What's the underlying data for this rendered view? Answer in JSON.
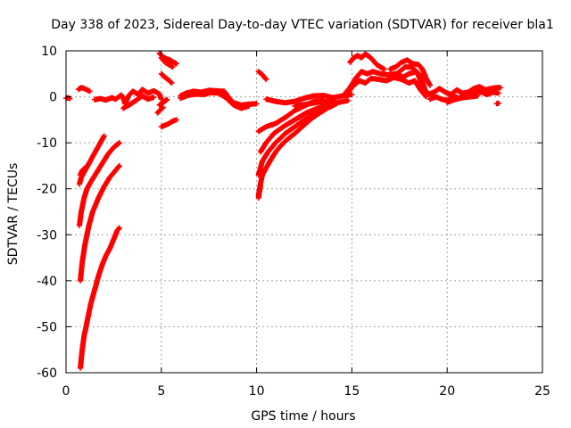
{
  "chart_data": {
    "type": "scatter",
    "title": "Day 338 of 2023, Sidereal Day-to-day VTEC variation (SDTVAR) for receiver bla1",
    "xlabel": "GPS time / hours",
    "ylabel": "SDTVAR / TECUs",
    "xlim": [
      0,
      25
    ],
    "ylim": [
      -60,
      10
    ],
    "xticks": [
      0,
      5,
      10,
      15,
      20,
      25
    ],
    "yticks": [
      -60,
      -50,
      -40,
      -30,
      -20,
      -10,
      0,
      10
    ],
    "grid": true,
    "marker": "+",
    "series_color": "#ff0000",
    "segments": [
      {
        "name": "start",
        "points": [
          [
            0.0,
            -0.3
          ],
          [
            0.1,
            -0.2
          ],
          [
            0.2,
            -0.4
          ]
        ]
      },
      {
        "name": "arc-a",
        "points": [
          [
            0.75,
            -17
          ],
          [
            0.85,
            -16
          ],
          [
            1.0,
            -15.5
          ],
          [
            1.1,
            -15
          ]
        ]
      },
      {
        "name": "arc-b",
        "points": [
          [
            0.7,
            -19
          ],
          [
            0.8,
            -17.5
          ],
          [
            1.0,
            -16
          ],
          [
            1.2,
            -14.5
          ],
          [
            1.4,
            -13
          ],
          [
            1.6,
            -11.5
          ],
          [
            1.8,
            -10
          ],
          [
            2.0,
            -8.5
          ]
        ]
      },
      {
        "name": "arc-c",
        "points": [
          [
            0.7,
            -28
          ],
          [
            0.8,
            -25
          ],
          [
            0.95,
            -22
          ],
          [
            1.1,
            -20
          ],
          [
            1.3,
            -18.5
          ],
          [
            1.6,
            -16.5
          ],
          [
            1.9,
            -14.5
          ],
          [
            2.2,
            -12.5
          ],
          [
            2.5,
            -11
          ],
          [
            2.8,
            -10
          ]
        ]
      },
      {
        "name": "arc-d",
        "points": [
          [
            0.75,
            -40
          ],
          [
            0.85,
            -36
          ],
          [
            1.0,
            -32
          ],
          [
            1.2,
            -28
          ],
          [
            1.4,
            -25
          ],
          [
            1.7,
            -22
          ],
          [
            2.0,
            -19.5
          ],
          [
            2.3,
            -17.5
          ],
          [
            2.6,
            -16
          ],
          [
            2.8,
            -15
          ]
        ]
      },
      {
        "name": "arc-e",
        "points": [
          [
            0.75,
            -59
          ],
          [
            0.85,
            -55
          ],
          [
            0.95,
            -52
          ],
          [
            1.1,
            -49
          ],
          [
            1.3,
            -45
          ],
          [
            1.5,
            -42
          ],
          [
            1.7,
            -39
          ],
          [
            1.9,
            -36.5
          ],
          [
            2.1,
            -34.5
          ],
          [
            2.3,
            -33
          ],
          [
            2.5,
            -31
          ],
          [
            2.7,
            -29
          ],
          [
            2.8,
            -28.5
          ]
        ]
      },
      {
        "name": "early-pos",
        "points": [
          [
            0.65,
            1.6
          ],
          [
            0.8,
            2.0
          ],
          [
            0.95,
            1.8
          ],
          [
            1.1,
            1.5
          ],
          [
            1.25,
            1.2
          ]
        ]
      },
      {
        "name": "wave-1",
        "points": [
          [
            1.5,
            -0.6
          ],
          [
            1.8,
            -0.4
          ],
          [
            2.1,
            -0.7
          ],
          [
            2.4,
            -0.2
          ],
          [
            2.6,
            -0.5
          ],
          [
            2.9,
            0.4
          ],
          [
            3.0,
            -0.3
          ],
          [
            3.1,
            -1.5
          ],
          [
            3.3,
            0.3
          ],
          [
            3.5,
            1.2
          ],
          [
            3.8,
            0.5
          ],
          [
            4.0,
            1.6
          ],
          [
            4.3,
            0.8
          ],
          [
            4.6,
            1.3
          ],
          [
            4.9,
            0.6
          ],
          [
            5.0,
            -0.5
          ]
        ]
      },
      {
        "name": "wave-1b",
        "points": [
          [
            3.0,
            -2.5
          ],
          [
            3.3,
            -1.8
          ],
          [
            3.6,
            -1.0
          ],
          [
            4.0,
            0.2
          ],
          [
            4.3,
            -0.5
          ],
          [
            4.6,
            -0.1
          ]
        ]
      },
      {
        "name": "wave-1c",
        "points": [
          [
            4.8,
            -3.5
          ],
          [
            4.95,
            -2.8
          ],
          [
            5.1,
            -2.3
          ]
        ]
      },
      {
        "name": "pass-5-top",
        "points": [
          [
            4.9,
            9.5
          ],
          [
            5.05,
            8.8
          ],
          [
            5.25,
            8.3
          ],
          [
            5.45,
            8.0
          ],
          [
            5.6,
            7.6
          ],
          [
            5.8,
            7.2
          ]
        ]
      },
      {
        "name": "pass-5-top-b",
        "points": [
          [
            5.0,
            8.5
          ],
          [
            5.2,
            7.5
          ],
          [
            5.4,
            7.0
          ],
          [
            5.6,
            6.5
          ]
        ]
      },
      {
        "name": "pass-5-mid",
        "points": [
          [
            5.0,
            5.0
          ],
          [
            5.2,
            4.2
          ],
          [
            5.4,
            3.6
          ],
          [
            5.55,
            3.0
          ]
        ]
      },
      {
        "name": "pass-5-low",
        "points": [
          [
            5.0,
            -6.5
          ],
          [
            5.2,
            -6.2
          ],
          [
            5.4,
            -5.8
          ],
          [
            5.6,
            -5.3
          ],
          [
            5.8,
            -5.0
          ]
        ]
      },
      {
        "name": "pass-5-low-b",
        "points": [
          [
            4.9,
            -1.8
          ],
          [
            5.1,
            -1.2
          ],
          [
            5.3,
            -0.6
          ]
        ]
      },
      {
        "name": "wave-2",
        "points": [
          [
            6.0,
            0.2
          ],
          [
            6.3,
            0.8
          ],
          [
            6.7,
            1.2
          ],
          [
            7.1,
            1.0
          ],
          [
            7.5,
            1.4
          ],
          [
            7.9,
            1.3
          ],
          [
            8.3,
            1.2
          ],
          [
            8.6,
            -0.5
          ],
          [
            8.8,
            -1.3
          ],
          [
            9.2,
            -1.8
          ],
          [
            9.6,
            -1.6
          ],
          [
            10.0,
            -1.5
          ]
        ]
      },
      {
        "name": "wave-2b",
        "points": [
          [
            6.0,
            -0.3
          ],
          [
            6.4,
            0.3
          ],
          [
            6.8,
            0.6
          ],
          [
            7.2,
            0.5
          ],
          [
            7.6,
            0.9
          ],
          [
            8.0,
            0.8
          ],
          [
            8.4,
            -0.2
          ],
          [
            8.8,
            -1.8
          ],
          [
            9.2,
            -2.5
          ],
          [
            9.6,
            -2.0
          ]
        ]
      },
      {
        "name": "pass-10-pos",
        "points": [
          [
            10.1,
            5.5
          ],
          [
            10.3,
            4.8
          ],
          [
            10.5,
            3.8
          ]
        ]
      },
      {
        "name": "pass-10-neg-a",
        "points": [
          [
            10.1,
            -21.5
          ],
          [
            10.2,
            -19
          ],
          [
            10.3,
            -17
          ],
          [
            10.5,
            -15.5
          ],
          [
            10.7,
            -14
          ],
          [
            11.0,
            -12
          ],
          [
            11.3,
            -10.5
          ],
          [
            11.6,
            -9.3
          ],
          [
            12.0,
            -8
          ],
          [
            12.4,
            -6.5
          ],
          [
            12.8,
            -5.0
          ],
          [
            13.2,
            -3.8
          ],
          [
            13.7,
            -2.5
          ],
          [
            14.2,
            -1.5
          ]
        ]
      },
      {
        "name": "pass-10-neg-b",
        "points": [
          [
            10.1,
            -17
          ],
          [
            10.3,
            -14
          ],
          [
            10.6,
            -12
          ],
          [
            11.0,
            -10
          ],
          [
            11.5,
            -8
          ],
          [
            12.0,
            -6.5
          ],
          [
            12.5,
            -5
          ],
          [
            13.0,
            -3.8
          ],
          [
            13.5,
            -2.8
          ],
          [
            14.0,
            -1.8
          ]
        ]
      },
      {
        "name": "pass-10-neg-c",
        "points": [
          [
            10.2,
            -12
          ],
          [
            10.5,
            -10
          ],
          [
            10.9,
            -8
          ],
          [
            11.4,
            -6.5
          ],
          [
            12.0,
            -5.0
          ],
          [
            12.6,
            -3.5
          ],
          [
            13.2,
            -2.5
          ],
          [
            13.9,
            -1.5
          ]
        ]
      },
      {
        "name": "pass-10-neg-d",
        "points": [
          [
            10.1,
            -7.5
          ],
          [
            10.5,
            -6.5
          ],
          [
            11.0,
            -5.8
          ],
          [
            11.5,
            -4.5
          ],
          [
            12.0,
            -3.0
          ],
          [
            12.5,
            -2.0
          ],
          [
            13.0,
            -1.0
          ],
          [
            13.5,
            -0.8
          ]
        ]
      },
      {
        "name": "pass-10-neg-e",
        "points": [
          [
            10.1,
            -22
          ],
          [
            10.15,
            -20.5
          ],
          [
            10.2,
            -19.5
          ]
        ]
      },
      {
        "name": "wave-3",
        "points": [
          [
            10.5,
            -0.5
          ],
          [
            11.0,
            -1.0
          ],
          [
            11.5,
            -1.3
          ],
          [
            12.0,
            -1.0
          ],
          [
            12.5,
            -0.3
          ],
          [
            13.0,
            0.2
          ],
          [
            13.5,
            0.3
          ],
          [
            14.0,
            -0.2
          ],
          [
            14.5,
            0.2
          ],
          [
            15.0,
            0.5
          ]
        ]
      },
      {
        "name": "wave-3b",
        "points": [
          [
            12.0,
            -2.0
          ],
          [
            12.8,
            -1.5
          ],
          [
            13.5,
            -1.0
          ],
          [
            14.2,
            -1.3
          ],
          [
            14.8,
            -0.8
          ]
        ]
      },
      {
        "name": "rise-15",
        "points": [
          [
            14.6,
            0.5
          ],
          [
            14.9,
            2.0
          ],
          [
            15.2,
            4.0
          ],
          [
            15.5,
            5.5
          ],
          [
            15.8,
            5.0
          ],
          [
            16.1,
            5.5
          ],
          [
            16.5,
            5.0
          ],
          [
            16.9,
            4.8
          ],
          [
            17.3,
            5.0
          ],
          [
            17.7,
            4.3
          ],
          [
            18.0,
            5.0
          ],
          [
            18.4,
            5.5
          ],
          [
            18.7,
            2.5
          ],
          [
            19.0,
            0.5
          ]
        ]
      },
      {
        "name": "rise-15b",
        "points": [
          [
            14.8,
            1.0
          ],
          [
            15.1,
            2.5
          ],
          [
            15.4,
            3.5
          ],
          [
            15.7,
            3.0
          ],
          [
            16.0,
            4.0
          ],
          [
            16.4,
            3.8
          ],
          [
            16.8,
            3.5
          ],
          [
            17.2,
            4.2
          ],
          [
            17.6,
            3.8
          ],
          [
            18.0,
            3.0
          ],
          [
            18.3,
            3.5
          ],
          [
            18.6,
            1.5
          ],
          [
            18.9,
            0.0
          ]
        ]
      },
      {
        "name": "peak-15",
        "points": [
          [
            14.9,
            7.5
          ],
          [
            15.1,
            8.5
          ],
          [
            15.3,
            9.0
          ],
          [
            15.5,
            8.5
          ],
          [
            15.7,
            9.3
          ],
          [
            15.9,
            8.8
          ],
          [
            16.1,
            8.0
          ],
          [
            16.3,
            7.0
          ],
          [
            16.5,
            6.5
          ],
          [
            16.7,
            6.0
          ]
        ]
      },
      {
        "name": "peak-18",
        "points": [
          [
            17.0,
            6.0
          ],
          [
            17.3,
            6.5
          ],
          [
            17.6,
            7.5
          ],
          [
            17.9,
            8.0
          ],
          [
            18.2,
            7.2
          ],
          [
            18.5,
            7.0
          ],
          [
            18.7,
            6.0
          ],
          [
            18.9,
            4.0
          ],
          [
            19.1,
            2.5
          ]
        ]
      },
      {
        "name": "peak-18b",
        "points": [
          [
            17.2,
            4.5
          ],
          [
            17.5,
            5.5
          ],
          [
            17.8,
            6.5
          ],
          [
            18.1,
            6.5
          ],
          [
            18.4,
            5.5
          ],
          [
            18.6,
            4.5
          ],
          [
            18.8,
            2.0
          ]
        ]
      },
      {
        "name": "wave-4",
        "points": [
          [
            19.0,
            0.5
          ],
          [
            19.3,
            1.0
          ],
          [
            19.6,
            1.8
          ],
          [
            19.9,
            1.0
          ],
          [
            20.2,
            0.5
          ],
          [
            20.5,
            1.5
          ],
          [
            20.8,
            0.8
          ],
          [
            21.1,
            1.0
          ],
          [
            21.4,
            1.8
          ],
          [
            21.7,
            2.2
          ],
          [
            22.0,
            1.5
          ],
          [
            22.3,
            1.8
          ],
          [
            22.6,
            2.0
          ],
          [
            22.8,
            2.0
          ]
        ]
      },
      {
        "name": "wave-4b",
        "points": [
          [
            19.1,
            -0.5
          ],
          [
            19.4,
            0.0
          ],
          [
            19.7,
            -0.5
          ],
          [
            20.0,
            -0.8
          ],
          [
            20.3,
            0.2
          ],
          [
            20.6,
            -0.3
          ],
          [
            20.9,
            0.3
          ],
          [
            21.2,
            0.5
          ],
          [
            21.5,
            1.0
          ],
          [
            21.8,
            1.0
          ],
          [
            22.1,
            0.5
          ],
          [
            22.4,
            1.0
          ],
          [
            22.7,
            0.8
          ]
        ]
      },
      {
        "name": "wave-4c",
        "points": [
          [
            20.0,
            -1.2
          ],
          [
            20.4,
            -0.6
          ],
          [
            20.8,
            -0.2
          ],
          [
            21.2,
            0.0
          ],
          [
            21.6,
            0.2
          ]
        ]
      },
      {
        "name": "end-point",
        "points": [
          [
            22.6,
            -1.5
          ],
          [
            22.7,
            -1.4
          ]
        ]
      }
    ]
  }
}
